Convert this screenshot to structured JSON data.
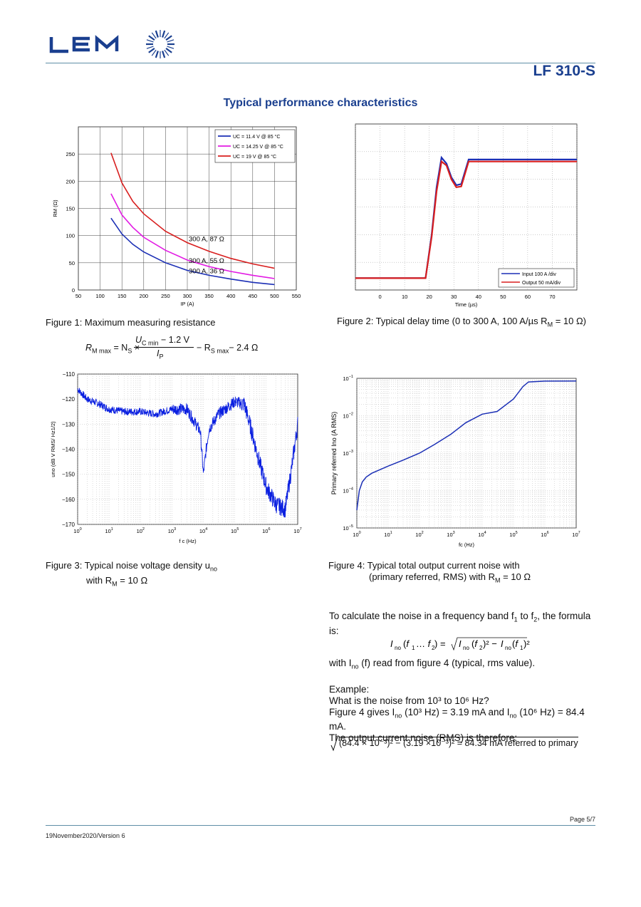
{
  "header": {
    "brand": "LEM",
    "doc_title": "LF 310-S",
    "section_title": "Typical performance characteristics"
  },
  "colors": {
    "brand_blue": "#1a3f8f",
    "rule": "#5f8fa6",
    "series_blue": "#1b2fb5",
    "series_magenta": "#e21be3",
    "series_red": "#d81e1e"
  },
  "figures": {
    "fig1_caption": "Figure 1: Maximum measuring resistance",
    "fig2_caption": "Figure 2: Typical delay time (0 to 300 A, 100 A/µs R",
    "fig2_caption_sub": "M",
    "fig2_caption_end": " = 10 Ω)",
    "fig3_caption_line1": "Figure 3: Typical noise voltage density u",
    "fig3_caption_sub": "no",
    "fig3_caption_line2": "with R",
    "fig3_caption_line2_sub": "M",
    "fig3_caption_line2_end": " = 10 Ω",
    "fig4_caption_line1": "Figure 4: Typical total output current noise with",
    "fig4_caption_line2": "(primary referred, RMS) with R",
    "fig4_caption_line2_sub": "M",
    "fig4_caption_line2_end": " = 10 Ω"
  },
  "formula_rm": {
    "lhs": "R",
    "lhs_sub": "M max",
    "eq": "= N",
    "ns_sub": "S",
    "times": "×",
    "num": "U",
    "num_sub": "C min",
    "num_end": "− 1.2 V",
    "den": "I",
    "den_sub": "P",
    "rest": "− R",
    "rest_sub": "S max",
    "rest_end": "− 2.4 Ω"
  },
  "noise_text": {
    "p1": "To calculate the noise in a frequency band f",
    "p1_sub1": "1",
    "p1_mid": " to f",
    "p1_sub2": "2",
    "p1_end": ", the formula",
    "p1_line2": "is:",
    "formula": "I",
    "formula_rest": "(f",
    "p2": "with I",
    "p2_sub": "no",
    "p2_end": "(f) read from figure 4 (typical, rms value).",
    "example": "Example:",
    "q": "What is the noise from 10³ to 10⁶ Hz?",
    "g1": "Figure 4 gives I",
    "g_sub": "no",
    "g2": "(10³ Hz) = 3.19 mA and I",
    "g3": "(10⁶ Hz) = 84.4 mA.",
    "out": "The output current noise (RMS) is therefore:",
    "result": "(84.4 × 10⁻³)² − (3.19 ×10⁻³)² = 84.34 mA referred to primary"
  },
  "footer": {
    "page": "Page 5/7",
    "version": "19November2020/Version 6"
  },
  "chart_data": [
    {
      "type": "line",
      "title": "",
      "xlabel": "I_P (A)",
      "ylabel": "R_M (Ω)",
      "xlim": [
        50,
        550
      ],
      "ylim": [
        0,
        300
      ],
      "xticks": [
        50,
        100,
        150,
        200,
        250,
        300,
        350,
        400,
        450,
        500,
        550
      ],
      "yticks": [
        0,
        50,
        100,
        150,
        200,
        250
      ],
      "grid": true,
      "legend": "top-right",
      "series": [
        {
          "name": "U_C = 11.4 V @ 85 °C",
          "color": "#1b2fb5",
          "x": [
            125,
            150,
            175,
            200,
            250,
            300,
            350,
            400,
            450,
            500
          ],
          "y": [
            132,
            103,
            84,
            70,
            50,
            36,
            27,
            20,
            14,
            10
          ]
        },
        {
          "name": "U_C = 14.25 V @ 85 °C",
          "color": "#e21be3",
          "x": [
            125,
            150,
            175,
            200,
            250,
            300,
            350,
            400,
            450,
            500
          ],
          "y": [
            177,
            138,
            115,
            97,
            73,
            55,
            43,
            34,
            27,
            21
          ]
        },
        {
          "name": "U_C = 19 V @ 85 °C",
          "color": "#d81e1e",
          "x": [
            125,
            150,
            175,
            200,
            250,
            300,
            350,
            400,
            450,
            500
          ],
          "y": [
            252,
            197,
            163,
            140,
            108,
            87,
            71,
            58,
            48,
            40
          ]
        }
      ],
      "annotations": [
        "300 A, 87 Ω",
        "300 A, 55 Ω",
        "300 A, 36 Ω"
      ]
    },
    {
      "type": "line",
      "title": "",
      "xlabel": "Time (µs)",
      "ylabel": "",
      "xlim": [
        -10,
        80
      ],
      "ylim": [
        -0.3,
        3.9
      ],
      "xticks": [
        0,
        10,
        20,
        30,
        40,
        50,
        60,
        70
      ],
      "grid": true,
      "legend": "bottom-right",
      "series": [
        {
          "name": "Input 100 A /div",
          "color": "#1b2fb5",
          "x": [
            -10,
            18.5,
            21,
            23,
            25,
            27,
            29,
            31,
            33,
            36,
            40,
            50,
            60,
            70,
            80
          ],
          "y": [
            0,
            0,
            1.1,
            2.3,
            3.05,
            2.9,
            2.55,
            2.35,
            2.38,
            3.0,
            3.0,
            3.0,
            3.0,
            3.0,
            3.0
          ]
        },
        {
          "name": "Output 50 mA/div",
          "color": "#d81e1e",
          "x": [
            -10,
            18.5,
            21,
            23,
            25,
            27,
            29,
            31,
            33,
            36,
            40,
            50,
            60,
            70,
            80
          ],
          "y": [
            0,
            0,
            1.05,
            2.2,
            2.95,
            2.85,
            2.5,
            2.3,
            2.32,
            2.95,
            2.95,
            2.95,
            2.95,
            2.95,
            2.95
          ]
        }
      ]
    },
    {
      "type": "line",
      "title": "",
      "xlabel": "f_c (Hz)",
      "ylabel": "u_no (dB V RMS/ Hz^1/2)",
      "xscale": "log",
      "xlim": [
        1,
        10000000
      ],
      "ylim": [
        -170,
        -110
      ],
      "xticks": [
        "10^0",
        "10^1",
        "10^2",
        "10^3",
        "10^4",
        "10^5",
        "10^6",
        "10^7"
      ],
      "yticks": [
        -110,
        -120,
        -130,
        -140,
        -150,
        -160,
        -170
      ],
      "grid": true,
      "series": [
        {
          "name": "",
          "color": "#0a1fe0",
          "x": [
            1,
            2,
            5,
            10,
            30,
            100,
            300,
            1000,
            3000,
            8000,
            10000,
            12000,
            15000,
            30000,
            100000,
            200000,
            300000,
            600000,
            1000000,
            2000000,
            4000000,
            6000000,
            10000000
          ],
          "y": [
            -116,
            -120,
            -122,
            -124,
            -125,
            -125,
            -126,
            -124,
            -124,
            -133,
            -150,
            -141,
            -132,
            -126,
            -121,
            -122,
            -130,
            -145,
            -155,
            -162,
            -164,
            -150,
            -130
          ]
        }
      ]
    },
    {
      "type": "line",
      "title": "",
      "xlabel": "f_c (Hz)",
      "ylabel": "Primary referred I_no (A RMS)",
      "xscale": "log",
      "yscale": "log",
      "xlim": [
        1,
        10000000
      ],
      "ylim": [
        1e-05,
        0.1
      ],
      "xticks": [
        "10^0",
        "10^1",
        "10^2",
        "10^3",
        "10^4",
        "10^5",
        "10^6",
        "10^7"
      ],
      "yticks": [
        "10^-5",
        "10^-4",
        "10^-3",
        "10^-2",
        "10^-1"
      ],
      "grid": true,
      "series": [
        {
          "name": "",
          "color": "#1b2fb5",
          "x": [
            1,
            1.2,
            1.5,
            2,
            3,
            5,
            10,
            30,
            100,
            300,
            1000,
            3000,
            10000,
            30000,
            100000,
            200000,
            300000,
            1000000,
            10000000
          ],
          "y": [
            3e-05,
            0.0001,
            0.00017,
            0.00023,
            0.00029,
            0.00035,
            0.00045,
            0.00065,
            0.001,
            0.0017,
            0.0032,
            0.0065,
            0.011,
            0.013,
            0.028,
            0.06,
            0.08,
            0.0844,
            0.085
          ]
        }
      ]
    }
  ]
}
